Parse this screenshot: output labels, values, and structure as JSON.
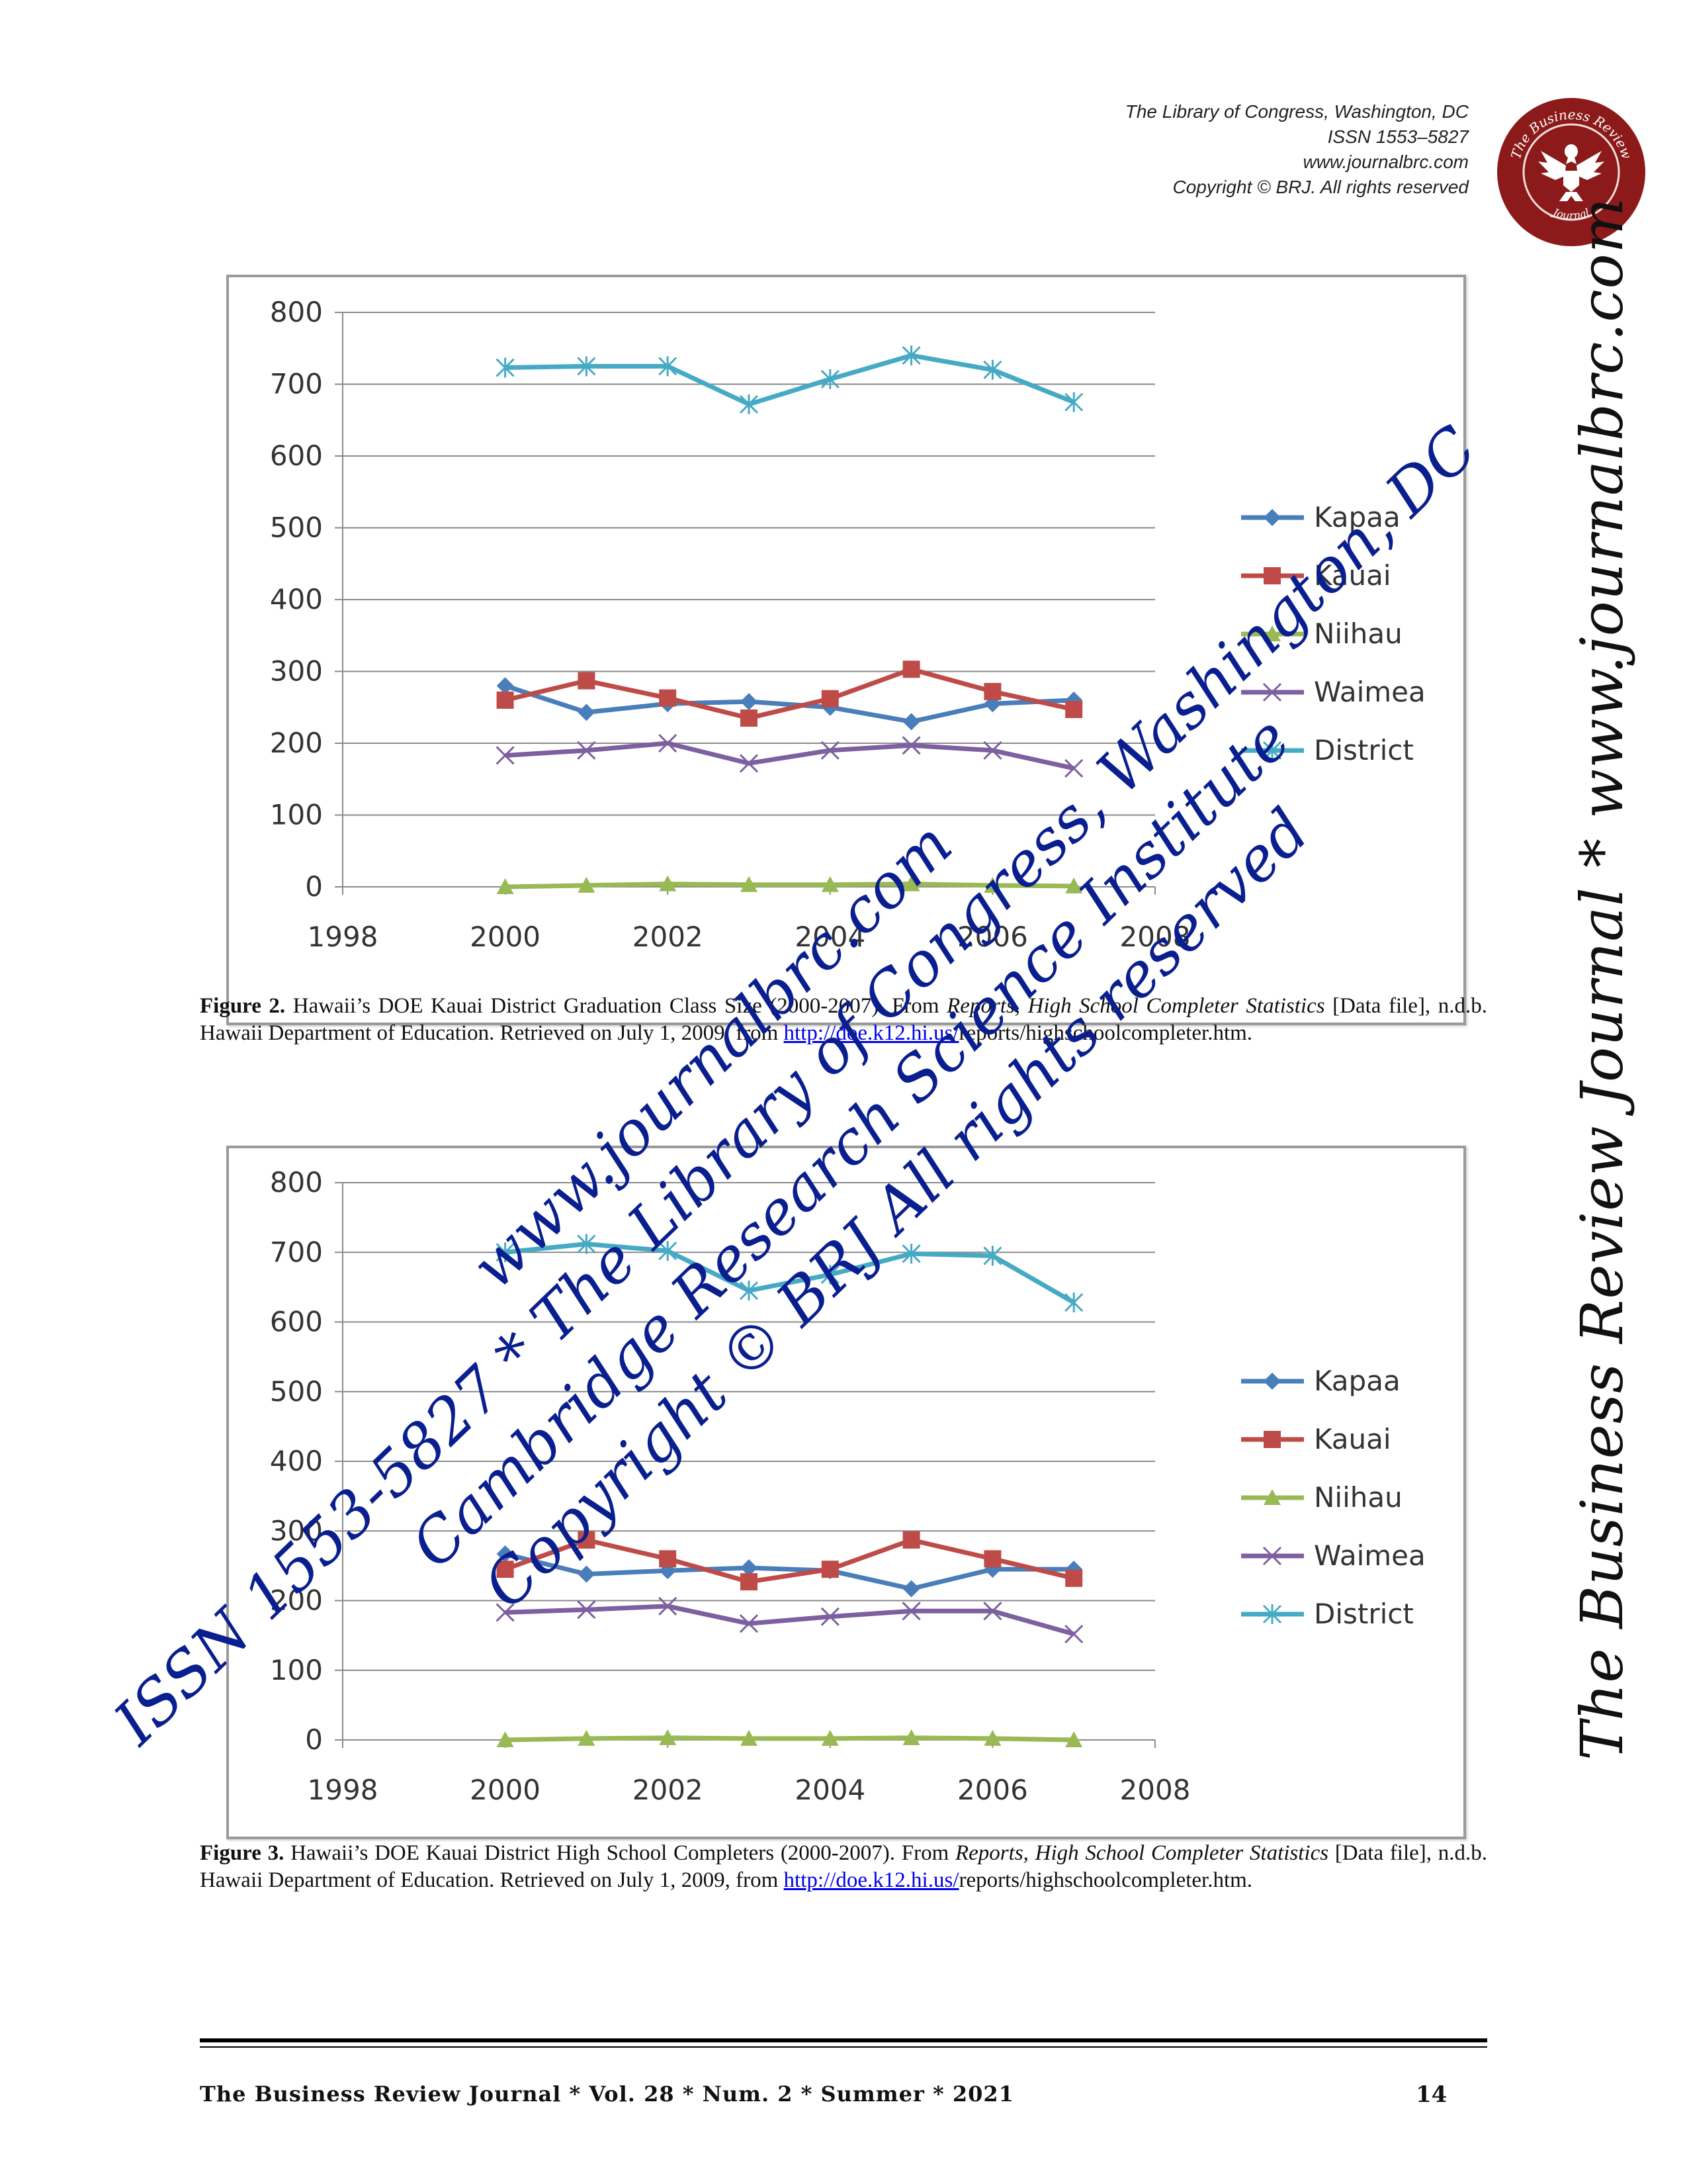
{
  "header": {
    "line1": "The Library of Congress, Washington, DC",
    "line2": "ISSN 1553–5827",
    "line3": "www.journalbrc.com",
    "line4": "Copyright ©  BRJ. All rights reserved"
  },
  "seal": {
    "top_text": "The Business Review",
    "bottom_text": "Journal"
  },
  "side_text": "The Business Review Journal * www.journalbrc.com",
  "colors": {
    "Kapaa": "#4a7ebb",
    "Kauai": "#be4b48",
    "Niihau": "#98b954",
    "Waimea": "#7d60a0",
    "District": "#46aac5",
    "watermark": "#0a1f8f",
    "seal": "#8c1a1a"
  },
  "figures": [
    {
      "label": "Figure 2.",
      "caption_plain": " Hawaii’s DOE Kauai District Graduation Class Size (2000-2007). From ",
      "source_italic": "Reports, High School Completer Statistics",
      "caption_rest": " [Data file], n.d.b. Hawaii Department of Education. Retrieved on July 1, 2009, from ",
      "link": "http://doe.k12.hi.us/",
      "link_tail": "reports/highschoolcompleter.htm."
    },
    {
      "label": "Figure 3.",
      "caption_plain": " Hawaii’s DOE Kauai District High School Completers (2000-2007). From ",
      "source_italic": "Reports, High School Completer Statistics",
      "caption_rest": " [Data file], n.d.b. Hawaii Department of Education. Retrieved on July 1, 2009, from ",
      "link": "http://doe.k12.hi.us/",
      "link_tail": "reports/highschoolcompleter.htm."
    }
  ],
  "chart_data": [
    {
      "type": "line",
      "xlim": [
        1998,
        2008
      ],
      "ylim": [
        0,
        800
      ],
      "xticks": [
        1998,
        2000,
        2002,
        2004,
        2006,
        2008
      ],
      "yticks": [
        0,
        100,
        200,
        300,
        400,
        500,
        600,
        700,
        800
      ],
      "grid": true,
      "legend_position": "right",
      "x": [
        2000,
        2001,
        2002,
        2003,
        2004,
        2005,
        2006,
        2007
      ],
      "series": [
        {
          "name": "Kapaa",
          "marker": "diamond",
          "values": [
            280,
            243,
            255,
            258,
            250,
            230,
            255,
            260
          ]
        },
        {
          "name": "Kauai",
          "marker": "square",
          "values": [
            260,
            287,
            263,
            235,
            262,
            303,
            272,
            247
          ]
        },
        {
          "name": "Niihau",
          "marker": "triangle",
          "values": [
            0,
            2,
            4,
            3,
            3,
            4,
            2,
            1
          ]
        },
        {
          "name": "Waimea",
          "marker": "x",
          "values": [
            183,
            190,
            200,
            172,
            190,
            197,
            190,
            165
          ]
        },
        {
          "name": "District",
          "marker": "star",
          "values": [
            723,
            725,
            725,
            672,
            707,
            740,
            720,
            675
          ]
        }
      ]
    },
    {
      "type": "line",
      "xlim": [
        1998,
        2008
      ],
      "ylim": [
        0,
        800
      ],
      "xticks": [
        1998,
        2000,
        2002,
        2004,
        2006,
        2008
      ],
      "yticks": [
        0,
        100,
        200,
        300,
        400,
        500,
        600,
        700,
        800
      ],
      "grid": true,
      "legend_position": "right",
      "x": [
        2000,
        2001,
        2002,
        2003,
        2004,
        2005,
        2006,
        2007
      ],
      "series": [
        {
          "name": "Kapaa",
          "marker": "diamond",
          "values": [
            267,
            238,
            243,
            247,
            243,
            217,
            245,
            245
          ]
        },
        {
          "name": "Kauai",
          "marker": "square",
          "values": [
            245,
            287,
            260,
            227,
            245,
            287,
            260,
            232
          ]
        },
        {
          "name": "Niihau",
          "marker": "triangle",
          "values": [
            0,
            2,
            3,
            2,
            2,
            3,
            2,
            0
          ]
        },
        {
          "name": "Waimea",
          "marker": "x",
          "values": [
            183,
            187,
            192,
            167,
            177,
            185,
            185,
            152
          ]
        },
        {
          "name": "District",
          "marker": "star",
          "values": [
            700,
            712,
            702,
            645,
            668,
            698,
            695,
            628
          ]
        }
      ]
    }
  ],
  "watermark": {
    "line1": "www.journalbrc.com",
    "line2": "ISSN 1553-5827 * The Library of Congress, Washington, DC",
    "line3": "Cambridge Research Science Institute",
    "line4": "Copyright © BRJ  All rights reserved"
  },
  "footer": {
    "journal": "The Business Review Journal  *  Vol. 28  *  Num. 2  *  Summer  *  2021",
    "page": "14"
  }
}
